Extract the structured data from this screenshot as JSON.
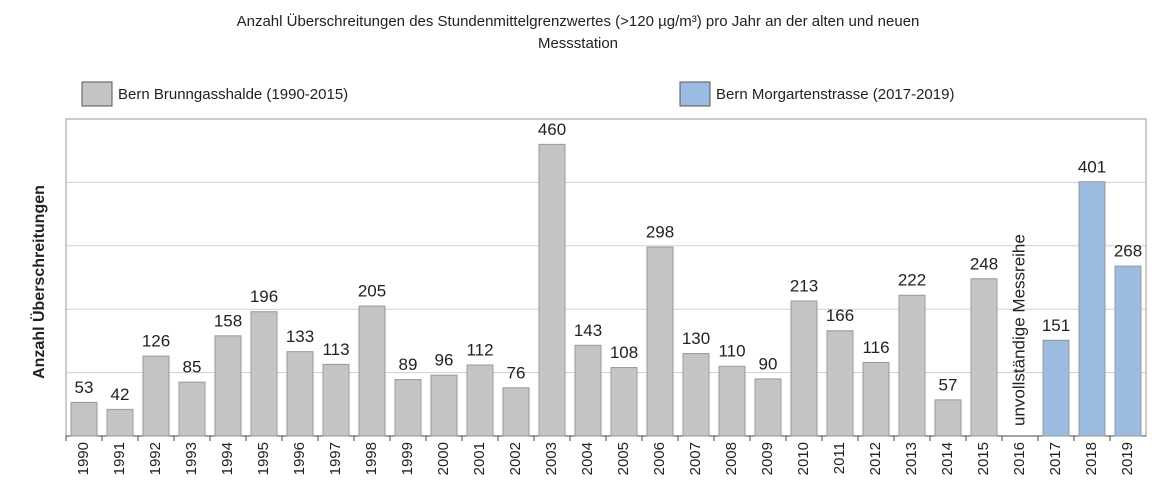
{
  "chart_data": {
    "type": "bar",
    "title": [
      "Anzahl Überschreitungen des Stundenmittelgrenzwertes (>120 µg/m³) pro Jahr an der alten und neuen",
      "Messstation"
    ],
    "y_label": "Anzahl Überschreitungen",
    "annotation": "unvollständige Messreihe",
    "categories": [
      "1990",
      "1991",
      "1992",
      "1993",
      "1994",
      "1995",
      "1996",
      "1997",
      "1998",
      "1999",
      "2000",
      "2001",
      "2002",
      "2003",
      "2004",
      "2005",
      "2006",
      "2007",
      "2008",
      "2009",
      "2010",
      "2011",
      "2012",
      "2013",
      "2014",
      "2015",
      "2016",
      "2017",
      "2018",
      "2019"
    ],
    "series": [
      {
        "name": "Bern Brunngasshalde (1990-2015)",
        "color": "#c4c4c4",
        "values": [
          53,
          42,
          126,
          85,
          158,
          196,
          133,
          113,
          205,
          89,
          96,
          112,
          76,
          460,
          143,
          108,
          298,
          130,
          110,
          90,
          213,
          166,
          116,
          222,
          57,
          248,
          null,
          null,
          null,
          null
        ]
      },
      {
        "name": "Bern Morgartenstrasse (2017-2019)",
        "color": "#9bbbe0",
        "values": [
          null,
          null,
          null,
          null,
          null,
          null,
          null,
          null,
          null,
          null,
          null,
          null,
          null,
          null,
          null,
          null,
          null,
          null,
          null,
          null,
          null,
          null,
          null,
          null,
          null,
          null,
          null,
          151,
          401,
          268
        ]
      }
    ],
    "ylim": [
      0,
      500
    ],
    "yticks": [
      0,
      100,
      200,
      300,
      400,
      500
    ],
    "grid": true
  }
}
